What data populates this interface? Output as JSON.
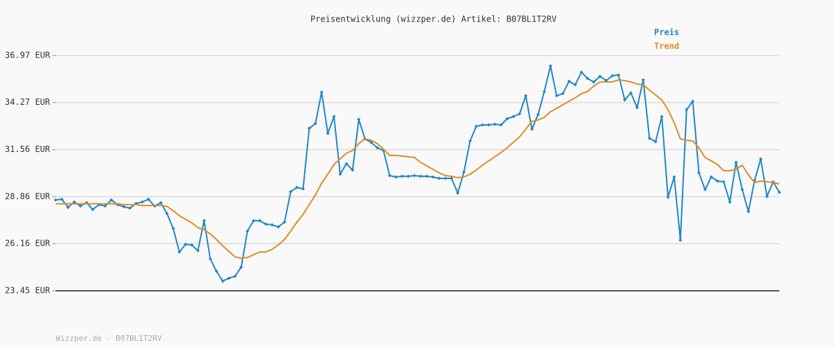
{
  "chart_data": {
    "type": "line",
    "title": "Preisentwicklung (wizzper.de) Artikel: B07BL1T2RV",
    "footer": "Wizzper.de - B07BL1T2RV",
    "legend": "top-right",
    "grid": true,
    "ylim": [
      23.45,
      36.97
    ],
    "yticks": [
      {
        "value": 23.45,
        "label": "23.45 EUR"
      },
      {
        "value": 26.16,
        "label": "26.16 EUR"
      },
      {
        "value": 28.86,
        "label": "28.86 EUR"
      },
      {
        "value": 31.56,
        "label": "31.56 EUR"
      },
      {
        "value": 34.27,
        "label": "34.27 EUR"
      },
      {
        "value": 36.97,
        "label": "36.97 EUR"
      }
    ],
    "series": [
      {
        "name": "Preis",
        "color": "#1f87c6",
        "markers": true,
        "values": [
          28.67,
          28.71,
          28.24,
          28.55,
          28.32,
          28.51,
          28.12,
          28.4,
          28.32,
          28.67,
          28.4,
          28.28,
          28.2,
          28.47,
          28.55,
          28.71,
          28.32,
          28.51,
          27.88,
          27.04,
          25.68,
          26.12,
          26.08,
          25.76,
          27.48,
          25.28,
          24.57,
          24.01,
          24.17,
          24.29,
          24.81,
          26.88,
          27.48,
          27.48,
          27.28,
          27.24,
          27.12,
          27.4,
          29.15,
          29.39,
          29.31,
          32.78,
          33.06,
          34.86,
          32.5,
          33.46,
          30.15,
          30.75,
          30.39,
          33.3,
          32.18,
          31.98,
          31.67,
          31.51,
          30.07,
          29.99,
          30.03,
          30.03,
          30.07,
          30.03,
          30.03,
          29.99,
          29.91,
          29.91,
          29.91,
          29.07,
          30.27,
          32.06,
          32.9,
          32.98,
          32.98,
          33.02,
          32.98,
          33.34,
          33.46,
          33.62,
          34.66,
          32.74,
          33.58,
          34.9,
          36.37,
          34.66,
          34.78,
          35.49,
          35.29,
          36.01,
          35.65,
          35.45,
          35.77,
          35.53,
          35.81,
          35.85,
          34.42,
          34.82,
          33.98,
          35.57,
          32.22,
          32.02,
          33.46,
          28.83,
          29.99,
          26.36,
          33.86,
          34.34,
          30.23,
          29.27,
          29.99,
          29.75,
          29.71,
          28.55,
          30.83,
          29.27,
          28.0,
          29.79,
          31.03,
          28.87,
          29.71,
          29.11
        ]
      },
      {
        "name": "Trend",
        "color": "#e08b22",
        "markers": false,
        "values": [
          28.45,
          28.45,
          28.45,
          28.45,
          28.45,
          28.45,
          28.45,
          28.45,
          28.45,
          28.45,
          28.45,
          28.4,
          28.4,
          28.4,
          28.35,
          28.35,
          28.35,
          28.35,
          28.3,
          28.05,
          27.76,
          27.56,
          27.36,
          27.08,
          26.96,
          26.72,
          26.4,
          26.04,
          25.72,
          25.4,
          25.32,
          25.36,
          25.52,
          25.68,
          25.68,
          25.84,
          26.08,
          26.4,
          26.88,
          27.4,
          27.84,
          28.4,
          28.95,
          29.63,
          30.15,
          30.71,
          31.03,
          31.35,
          31.51,
          31.91,
          32.18,
          32.1,
          31.91,
          31.59,
          31.23,
          31.23,
          31.19,
          31.15,
          31.11,
          30.83,
          30.63,
          30.43,
          30.23,
          30.07,
          30.03,
          29.95,
          29.99,
          30.15,
          30.39,
          30.67,
          30.91,
          31.15,
          31.39,
          31.67,
          31.99,
          32.3,
          32.74,
          33.18,
          33.26,
          33.42,
          33.74,
          33.94,
          34.14,
          34.34,
          34.54,
          34.78,
          34.9,
          35.21,
          35.45,
          35.45,
          35.45,
          35.57,
          35.53,
          35.45,
          35.33,
          35.29,
          34.98,
          34.7,
          34.42,
          33.86,
          33.1,
          32.18,
          32.1,
          32.06,
          31.67,
          31.11,
          30.91,
          30.71,
          30.35,
          30.35,
          30.43,
          30.67,
          30.11,
          29.67,
          29.75,
          29.71,
          29.67,
          29.59
        ]
      }
    ]
  }
}
